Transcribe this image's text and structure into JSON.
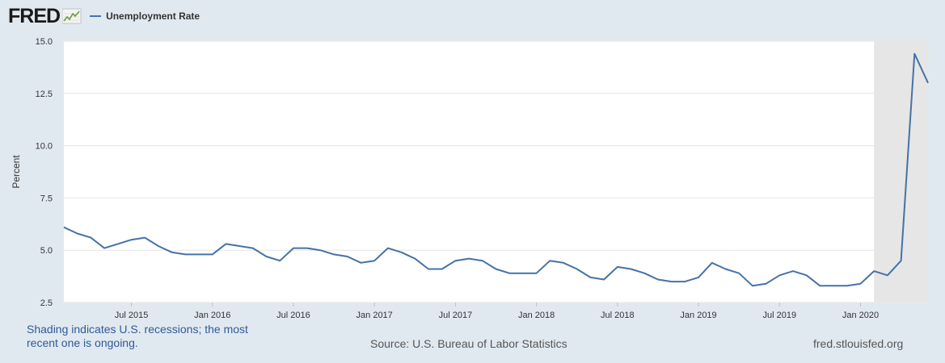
{
  "header": {
    "logo_text": "FRED",
    "logo_icon": "chart-line-icon",
    "legend_label": "Unemployment Rate",
    "legend_color": "#4572a7"
  },
  "chart_data": {
    "type": "line",
    "title": "",
    "xlabel": "",
    "ylabel": "Percent",
    "ylim": [
      2.5,
      15.0
    ],
    "yticks": [
      "2.5",
      "5.0",
      "7.5",
      "10.0",
      "12.5",
      "15.0"
    ],
    "xticks": [
      {
        "label": "Jul 2015",
        "date": "2015-07"
      },
      {
        "label": "Jan 2016",
        "date": "2016-01"
      },
      {
        "label": "Jul 2016",
        "date": "2016-07"
      },
      {
        "label": "Jan 2017",
        "date": "2017-01"
      },
      {
        "label": "Jul 2017",
        "date": "2017-07"
      },
      {
        "label": "Jan 2018",
        "date": "2018-01"
      },
      {
        "label": "Jul 2018",
        "date": "2018-07"
      },
      {
        "label": "Jan 2019",
        "date": "2019-01"
      },
      {
        "label": "Jul 2019",
        "date": "2019-07"
      },
      {
        "label": "Jan 2020",
        "date": "2020-01"
      }
    ],
    "grid": "horizontal",
    "recession_shading": {
      "start": "2020-02",
      "end": "2020-08",
      "color": "#e6e6e6"
    },
    "series": [
      {
        "name": "Unemployment Rate",
        "color": "#4572a7",
        "x": [
          "2015-02",
          "2015-03",
          "2015-04",
          "2015-05",
          "2015-06",
          "2015-07",
          "2015-08",
          "2015-09",
          "2015-10",
          "2015-11",
          "2015-12",
          "2016-01",
          "2016-02",
          "2016-03",
          "2016-04",
          "2016-05",
          "2016-06",
          "2016-07",
          "2016-08",
          "2016-09",
          "2016-10",
          "2016-11",
          "2016-12",
          "2017-01",
          "2017-02",
          "2017-03",
          "2017-04",
          "2017-05",
          "2017-06",
          "2017-07",
          "2017-08",
          "2017-09",
          "2017-10",
          "2017-11",
          "2017-12",
          "2018-01",
          "2018-02",
          "2018-03",
          "2018-04",
          "2018-05",
          "2018-06",
          "2018-07",
          "2018-08",
          "2018-09",
          "2018-10",
          "2018-11",
          "2018-12",
          "2019-01",
          "2019-02",
          "2019-03",
          "2019-04",
          "2019-05",
          "2019-06",
          "2019-07",
          "2019-08",
          "2019-09",
          "2019-10",
          "2019-11",
          "2019-12",
          "2020-01",
          "2020-02",
          "2020-03",
          "2020-04",
          "2020-05",
          "2020-06"
        ],
        "values": [
          6.1,
          5.8,
          5.6,
          5.1,
          5.3,
          5.5,
          5.6,
          5.2,
          4.9,
          4.8,
          4.8,
          4.8,
          5.3,
          5.2,
          5.1,
          4.7,
          4.5,
          5.1,
          5.1,
          5.0,
          4.8,
          4.7,
          4.4,
          4.5,
          5.1,
          4.9,
          4.6,
          4.1,
          4.1,
          4.5,
          4.6,
          4.5,
          4.1,
          3.9,
          3.9,
          3.9,
          4.5,
          4.4,
          4.1,
          3.7,
          3.6,
          4.2,
          4.1,
          3.9,
          3.6,
          3.5,
          3.5,
          3.7,
          4.4,
          4.1,
          3.9,
          3.3,
          3.4,
          3.8,
          4.0,
          3.8,
          3.3,
          3.3,
          3.3,
          3.4,
          4.0,
          3.8,
          4.5,
          14.4,
          13.0
        ]
      }
    ]
  },
  "footer": {
    "note": "Shading indicates U.S. recessions; the most recent one is ongoing.",
    "source": "Source: U.S. Bureau of Labor Statistics",
    "site": "fred.stlouisfed.org"
  }
}
